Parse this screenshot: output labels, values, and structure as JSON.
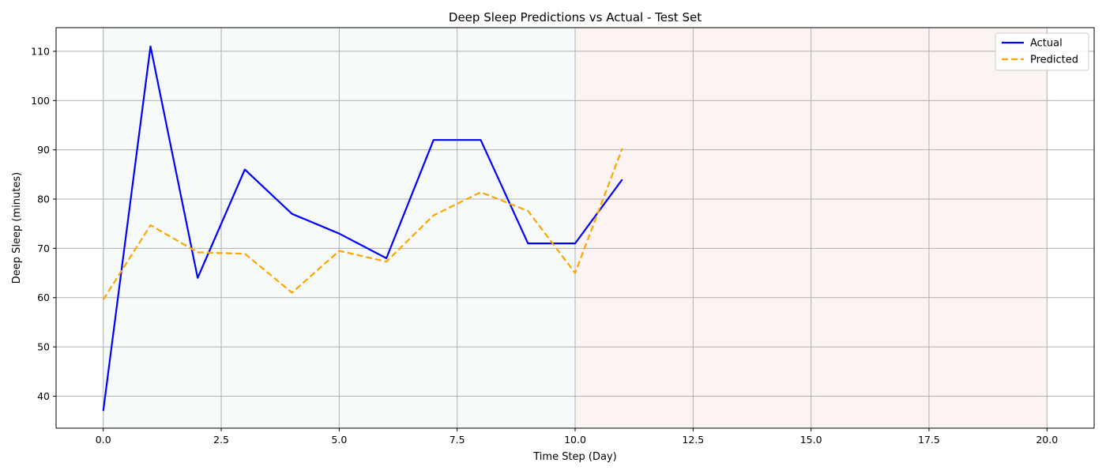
{
  "chart_data": {
    "type": "line",
    "title": "Deep Sleep Predictions vs Actual - Test Set",
    "xlabel": "Time Step (Day)",
    "ylabel": "Deep Sleep (minutes)",
    "xlim": [
      -1,
      21
    ],
    "ylim": [
      33.5,
      114.8
    ],
    "x_ticks": [
      0,
      2.5,
      5,
      7.5,
      10,
      12.5,
      15,
      17.5,
      20
    ],
    "x_tick_labels": [
      "0.0",
      "2.5",
      "5.0",
      "7.5",
      "10.0",
      "12.5",
      "15.0",
      "17.5",
      "20.0"
    ],
    "y_ticks": [
      40,
      50,
      60,
      70,
      80,
      90,
      100,
      110
    ],
    "y_tick_labels": [
      "40",
      "50",
      "60",
      "70",
      "80",
      "90",
      "100",
      "110"
    ],
    "grid": true,
    "legend_position": "top-right",
    "shaded_regions": [
      {
        "x_range": [
          0,
          10
        ],
        "color": "#e0f0ee"
      },
      {
        "x_range": [
          10,
          20
        ],
        "color": "#f6dcd8"
      }
    ],
    "series": [
      {
        "name": "Actual",
        "style": "solid",
        "color": "#0000ff",
        "x": [
          0,
          1,
          2,
          3,
          4,
          5,
          6,
          7,
          8,
          9,
          10,
          11
        ],
        "values": [
          37,
          111,
          64,
          86,
          77,
          73,
          68,
          92,
          92,
          71,
          71,
          84
        ]
      },
      {
        "name": "Predicted",
        "style": "dashed",
        "color": "#ffa500",
        "x": [
          0,
          1,
          2,
          3,
          4,
          5,
          6,
          7,
          8,
          9,
          10,
          11
        ],
        "values": [
          59.6,
          74.7,
          69.2,
          68.9,
          61.0,
          69.5,
          67.3,
          76.7,
          81.4,
          77.6,
          65.0,
          90.3
        ]
      }
    ]
  }
}
